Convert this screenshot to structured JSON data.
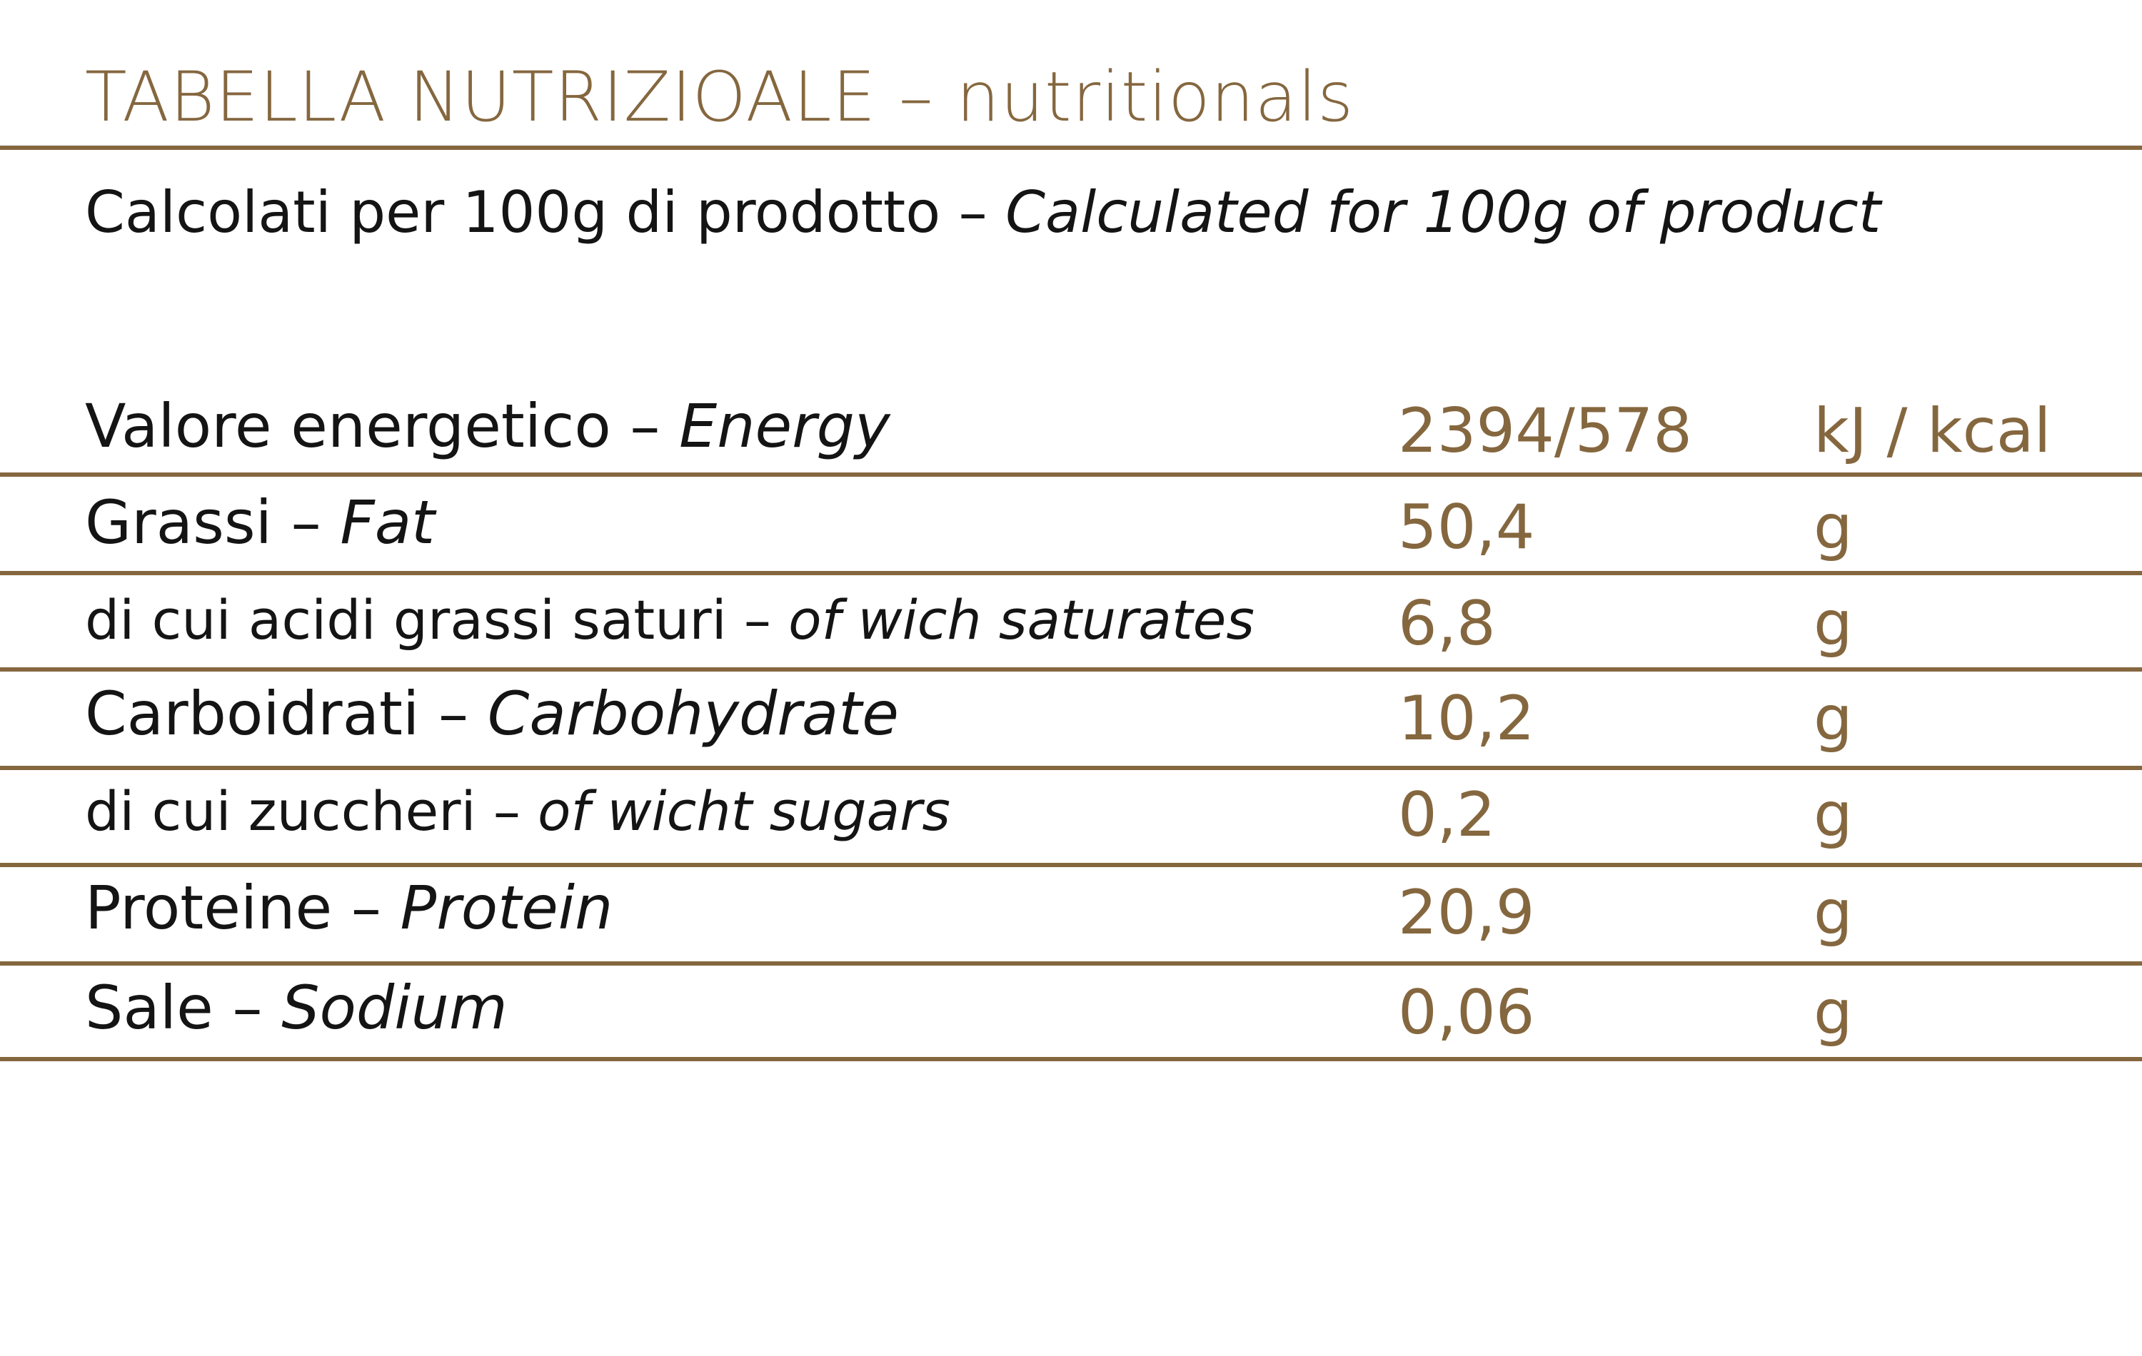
{
  "header": {
    "title": "TABELLA NUTRIZIOALE – nutritionals",
    "subtitle": {
      "it": "Calcolati per 100g di prodotto – ",
      "en": "Calculated for 100g of product"
    }
  },
  "table": {
    "rows": [
      {
        "it": "Valore energetico – ",
        "en": "Energy",
        "value": "2394/578",
        "unit": "kJ / kcal"
      },
      {
        "it": "Grassi – ",
        "en": "Fat",
        "value": "50,4",
        "unit": "g"
      },
      {
        "it": "di cui acidi grassi saturi – ",
        "en": "of wich saturates",
        "value": "6,8",
        "unit": "g"
      },
      {
        "it": "Carboidrati – ",
        "en": "Carbohydrate",
        "value": "10,2",
        "unit": "g"
      },
      {
        "it": "di cui zuccheri – ",
        "en": "of wicht sugars",
        "value": "0,2",
        "unit": "g"
      },
      {
        "it": "Proteine – ",
        "en": "Protein",
        "value": "20,9",
        "unit": "g"
      },
      {
        "it": "Sale – ",
        "en": "Sodium",
        "value": "0,06",
        "unit": "g"
      }
    ]
  }
}
